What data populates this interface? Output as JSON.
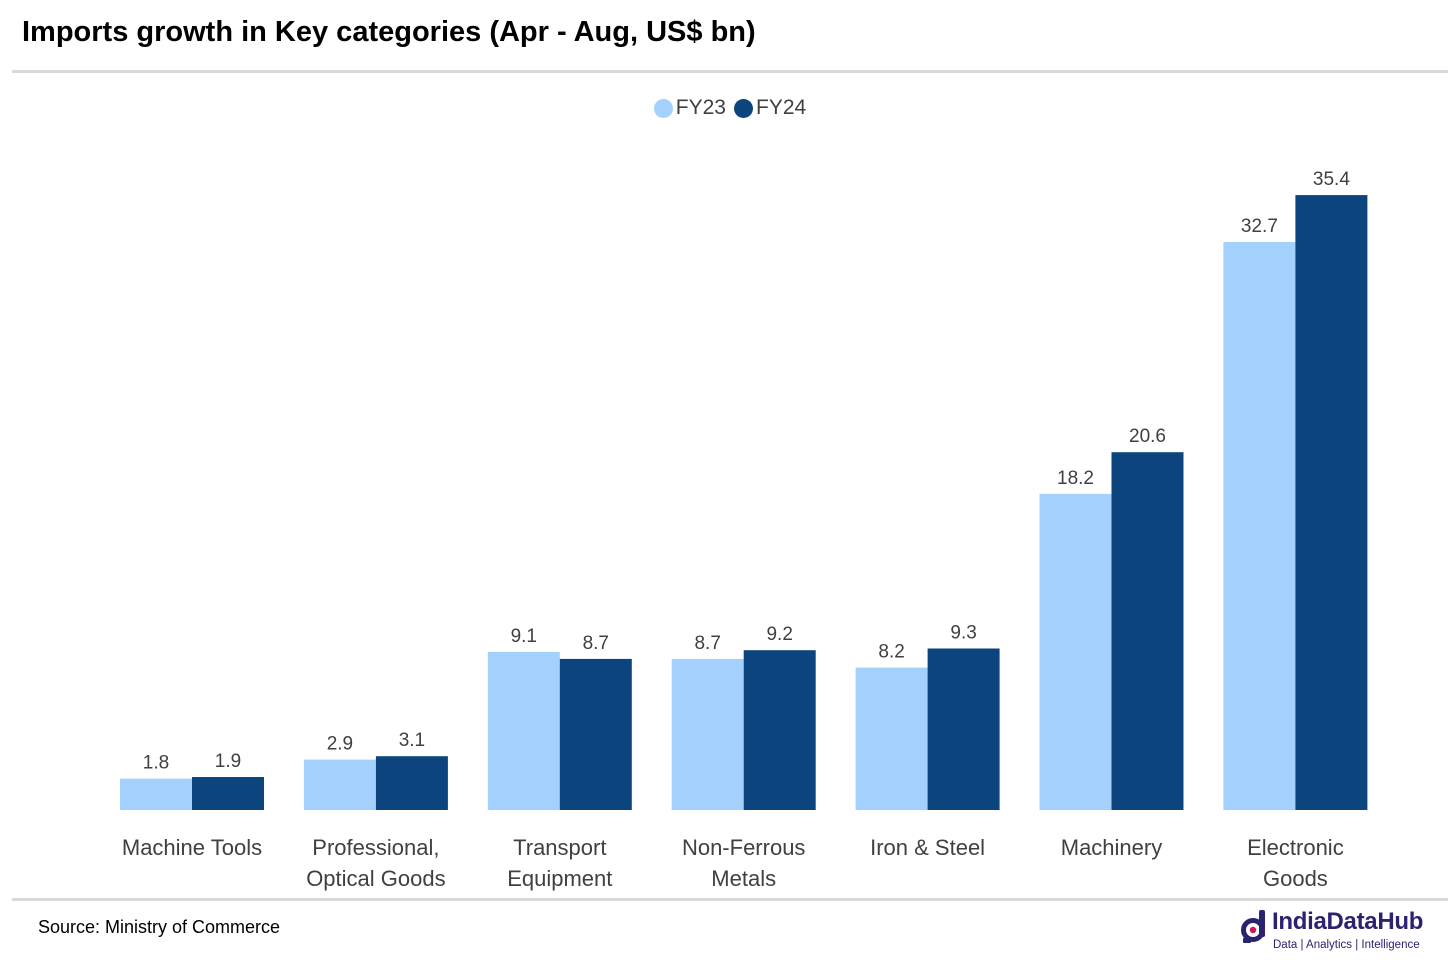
{
  "header": {
    "title": "Imports growth in Key categories (Apr - Aug, US$ bn)"
  },
  "footer": {
    "source": "Source: Ministry of Commerce",
    "logo_name": "IndiaDataHub",
    "logo_tagline": "Data | Analytics | Intelligence"
  },
  "colors": {
    "fy23": "#a3d0fc",
    "fy24": "#0c457d",
    "label_text": "#404040",
    "rule": "#d9d9d9",
    "brand": "#2a2470"
  },
  "chart_data": {
    "type": "bar",
    "title": "Imports growth in Key categories (Apr - Aug, US$ bn)",
    "xlabel": "",
    "ylabel": "",
    "ylim": [
      0,
      40
    ],
    "grid": false,
    "legend_position": "top-center",
    "categories": [
      [
        "Machine Tools"
      ],
      [
        "Professional,",
        "Optical Goods"
      ],
      [
        "Transport",
        "Equipment"
      ],
      [
        "Non-Ferrous",
        "Metals"
      ],
      [
        "Iron & Steel"
      ],
      [
        "Machinery"
      ],
      [
        "Electronic",
        "Goods"
      ]
    ],
    "series": [
      {
        "name": "FY23",
        "color": "#a3d0fc",
        "values": [
          1.8,
          2.9,
          9.1,
          8.7,
          8.2,
          18.2,
          32.7
        ],
        "labels": [
          "1.8",
          "2.9",
          "9.1",
          "8.7",
          "8.2",
          "18.2",
          "32.7"
        ]
      },
      {
        "name": "FY24",
        "color": "#0c457d",
        "values": [
          1.9,
          3.1,
          8.7,
          9.2,
          9.3,
          20.6,
          35.4
        ],
        "labels": [
          "1.9",
          "3.1",
          "8.7",
          "9.2",
          "9.3",
          "20.6",
          "35.4"
        ]
      }
    ]
  }
}
